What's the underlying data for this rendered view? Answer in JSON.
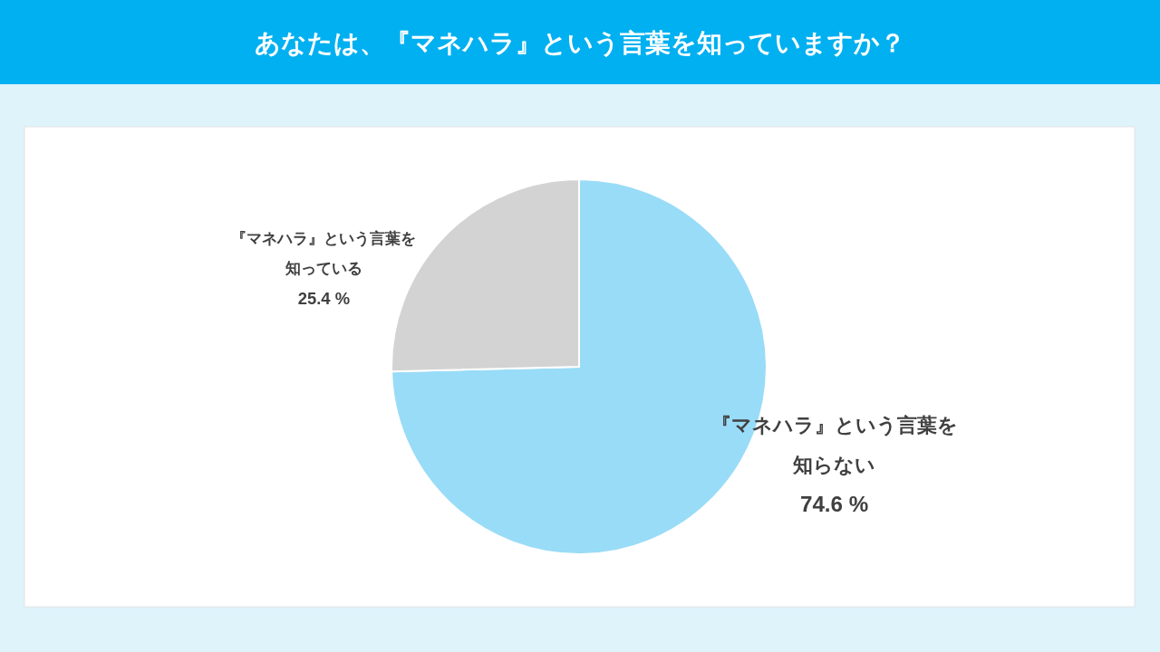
{
  "chart_data": {
    "type": "pie",
    "title": "あなたは、『マネハラ』という言葉を知っていますか？",
    "categories": [
      "『マネハラ』という言葉を知らない",
      "『マネハラ』という言葉を知っている"
    ],
    "values": [
      74.6,
      25.4
    ],
    "colors": [
      "#99dcf7",
      "#d3d3d3"
    ],
    "value_labels": [
      "74.6 %",
      "25.4 %"
    ]
  }
}
